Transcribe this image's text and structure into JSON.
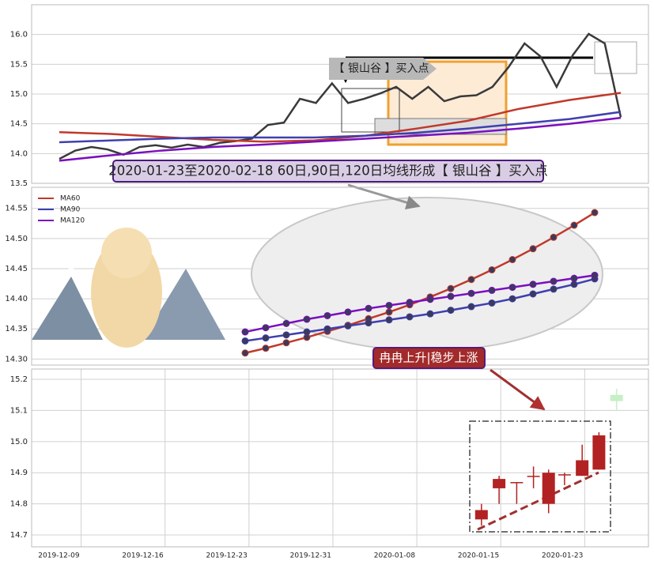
{
  "chart_data": [
    {
      "type": "line",
      "ylim": [
        13.5,
        16.5
      ],
      "yticks": [
        13.5,
        {
          "value": 14.0,
          "label": "14.0"
        },
        14.5,
        {
          "value": 15.0,
          "label": "15.0"
        },
        15.5,
        {
          "value": 16.0,
          "label": "16.0"
        }
      ],
      "grid": true,
      "annotations": [
        "【 银山谷 】买入点",
        "2020-01-23至2020-02-18 60日,90日,120日均线形成【 银山谷 】买入点"
      ],
      "series": [
        {
          "color": "#3a3a3a",
          "values": [
            13.91,
            14.05,
            14.11,
            14.07,
            13.98,
            14.11,
            14.14,
            14.1,
            14.15,
            14.11,
            14.18,
            14.21,
            14.25,
            14.48,
            14.52,
            14.92,
            14.85,
            15.18,
            14.85,
            14.92,
            15.01,
            15.12,
            14.92,
            15.12,
            14.88,
            14.96,
            14.98,
            15.12,
            15.45,
            15.85,
            15.63,
            15.12,
            15.65,
            16.01,
            15.85,
            14.61
          ]
        },
        {
          "color": "#c0392b",
          "values": [
            14.36,
            14.33,
            14.28,
            14.23,
            14.2,
            14.22,
            14.3,
            14.42,
            14.55,
            14.75,
            14.9,
            15.02
          ]
        },
        {
          "color": "#3f3fb0",
          "values": [
            14.19,
            14.22,
            14.25,
            14.27,
            14.27,
            14.27,
            14.3,
            14.35,
            14.42,
            14.5,
            14.58,
            14.7
          ]
        },
        {
          "color": "#7a0fbf",
          "values": [
            13.88,
            13.97,
            14.05,
            14.11,
            14.15,
            14.2,
            14.25,
            14.3,
            14.35,
            14.42,
            14.5,
            14.6
          ]
        }
      ]
    },
    {
      "type": "line",
      "ylim": [
        14.29,
        14.585
      ],
      "yticks": [
        {
          "value": 14.3,
          "label": "14.30"
        },
        14.35,
        {
          "value": 14.4,
          "label": "14.40"
        },
        14.45,
        {
          "value": 14.5,
          "label": "14.50"
        },
        14.55
      ],
      "grid": true,
      "legend": "upper left",
      "markers": true,
      "annotations": [
        "冉冉上升|稳步上涨"
      ],
      "series": [
        {
          "name": "MA60",
          "color": "#c0392b",
          "values": [
            14.31,
            14.318,
            14.327,
            14.336,
            14.346,
            14.356,
            14.367,
            14.378,
            14.39,
            14.403,
            14.417,
            14.432,
            14.448,
            14.465,
            14.483,
            14.502,
            14.522,
            14.543
          ]
        },
        {
          "name": "MA90",
          "color": "#3f3fb0",
          "values": [
            14.33,
            14.335,
            14.34,
            14.345,
            14.35,
            14.355,
            14.36,
            14.365,
            14.37,
            14.375,
            14.381,
            14.387,
            14.393,
            14.4,
            14.408,
            14.416,
            14.424,
            14.433
          ]
        },
        {
          "name": "MA120",
          "color": "#7a0fbf",
          "values": [
            14.345,
            14.352,
            14.359,
            14.366,
            14.372,
            14.378,
            14.384,
            14.389,
            14.394,
            14.399,
            14.404,
            14.409,
            14.414,
            14.419,
            14.424,
            14.429,
            14.434,
            14.439
          ]
        }
      ]
    },
    {
      "type": "candlestick",
      "ylim": [
        14.662,
        15.233
      ],
      "yticks": [
        14.7,
        14.8,
        14.9,
        {
          "value": 15.0,
          "label": "15.0"
        },
        15.1,
        15.2
      ],
      "xlim": [
        -0.59,
        6.76
      ],
      "xticks": [
        {
          "value": 0,
          "label": "2019-12-09"
        },
        {
          "value": 1,
          "label": "2019-12-16"
        },
        {
          "value": 2,
          "label": "2019-12-23"
        },
        {
          "value": 3,
          "label": "2019-12-31"
        },
        {
          "value": 4,
          "label": "2020-01-08"
        },
        {
          "value": 5,
          "label": "2020-01-15"
        },
        {
          "value": 6,
          "label": "2020-01-23"
        }
      ],
      "grid": true,
      "up_color": "#b22222",
      "down_color": "#c6efc6",
      "x": [
        4.77,
        4.98,
        5.19,
        5.39,
        5.57,
        5.76,
        5.97,
        6.17,
        6.38
      ],
      "open": [
        14.75,
        14.85,
        14.87,
        14.89,
        14.8,
        14.895,
        14.89,
        14.91,
        15.15
      ],
      "high": [
        14.8,
        14.89,
        14.87,
        14.92,
        14.91,
        14.9,
        14.99,
        15.03,
        15.17
      ],
      "low": [
        14.73,
        14.8,
        14.8,
        14.85,
        14.77,
        14.86,
        14.89,
        14.91,
        15.1
      ],
      "close": [
        14.78,
        14.88,
        14.87,
        14.89,
        14.9,
        14.895,
        14.94,
        15.02,
        15.13
      ]
    }
  ]
}
